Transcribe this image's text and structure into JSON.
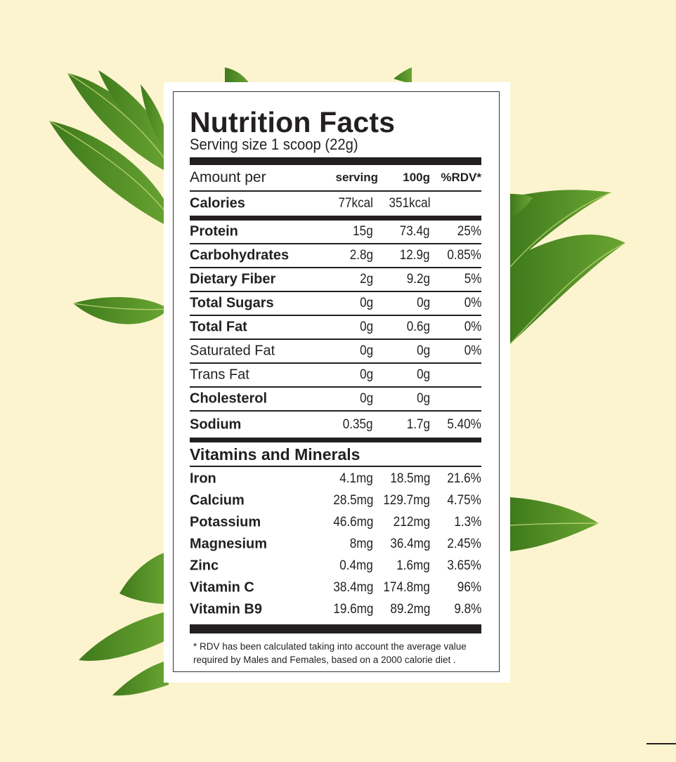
{
  "title": "Nutrition Facts",
  "serving_size": "Serving size 1 scoop (22g)",
  "header": {
    "label": "Amount per",
    "col1": "serving",
    "col2": "100g",
    "col3": "%RDV*"
  },
  "calories": {
    "name": "Calories",
    "serving": "77kcal",
    "per100": "351kcal"
  },
  "nutrients": [
    {
      "name": "Protein",
      "serving": "15g",
      "per100": "73.4g",
      "rdv": "25%"
    },
    {
      "name": "Carbohydrates",
      "serving": "2.8g",
      "per100": "12.9g",
      "rdv": "0.85%"
    },
    {
      "name": "Dietary Fiber",
      "serving": "2g",
      "per100": "9.2g",
      "rdv": "5%"
    },
    {
      "name": "Total Sugars",
      "serving": "0g",
      "per100": "0g",
      "rdv": "0%"
    },
    {
      "name": "Total Fat",
      "serving": "0g",
      "per100": "0.6g",
      "rdv": "0%"
    },
    {
      "name": "Saturated Fat",
      "serving": "0g",
      "per100": "0g",
      "rdv": "0%"
    },
    {
      "name": "Trans Fat",
      "serving": "0g",
      "per100": "0g",
      "rdv": ""
    },
    {
      "name": "Cholesterol",
      "serving": "0g",
      "per100": "0g",
      "rdv": ""
    },
    {
      "name": "Sodium",
      "serving": "0.35g",
      "per100": "1.7g",
      "rdv": "5.40%"
    }
  ],
  "vitamins_title": "Vitamins and Minerals",
  "vitamins": [
    {
      "name": "Iron",
      "serving": "4.1mg",
      "per100": "18.5mg",
      "rdv": "21.6%"
    },
    {
      "name": "Calcium",
      "serving": "28.5mg",
      "per100": "129.7mg",
      "rdv": "4.75%"
    },
    {
      "name": "Potassium",
      "serving": "46.6mg",
      "per100": "212mg",
      "rdv": "1.3%"
    },
    {
      "name": "Magnesium",
      "serving": "8mg",
      "per100": "36.4mg",
      "rdv": "2.45%"
    },
    {
      "name": "Zinc",
      "serving": "0.4mg",
      "per100": "1.6mg",
      "rdv": "3.65%"
    },
    {
      "name": "Vitamin C",
      "serving": "38.4mg",
      "per100": "174.8mg",
      "rdv": "96%"
    },
    {
      "name": "Vitamin B9",
      "serving": "19.6mg",
      "per100": "89.2mg",
      "rdv": "9.8%"
    }
  ],
  "footnote": {
    "line1": "* RDV has been calculated taking into account the average value",
    "line2": "required by Males and Females, based on a 2000 calorie diet ."
  },
  "colors": {
    "background": "#fcf4cf",
    "ink": "#231f20",
    "leaf": "#4f8a25"
  }
}
